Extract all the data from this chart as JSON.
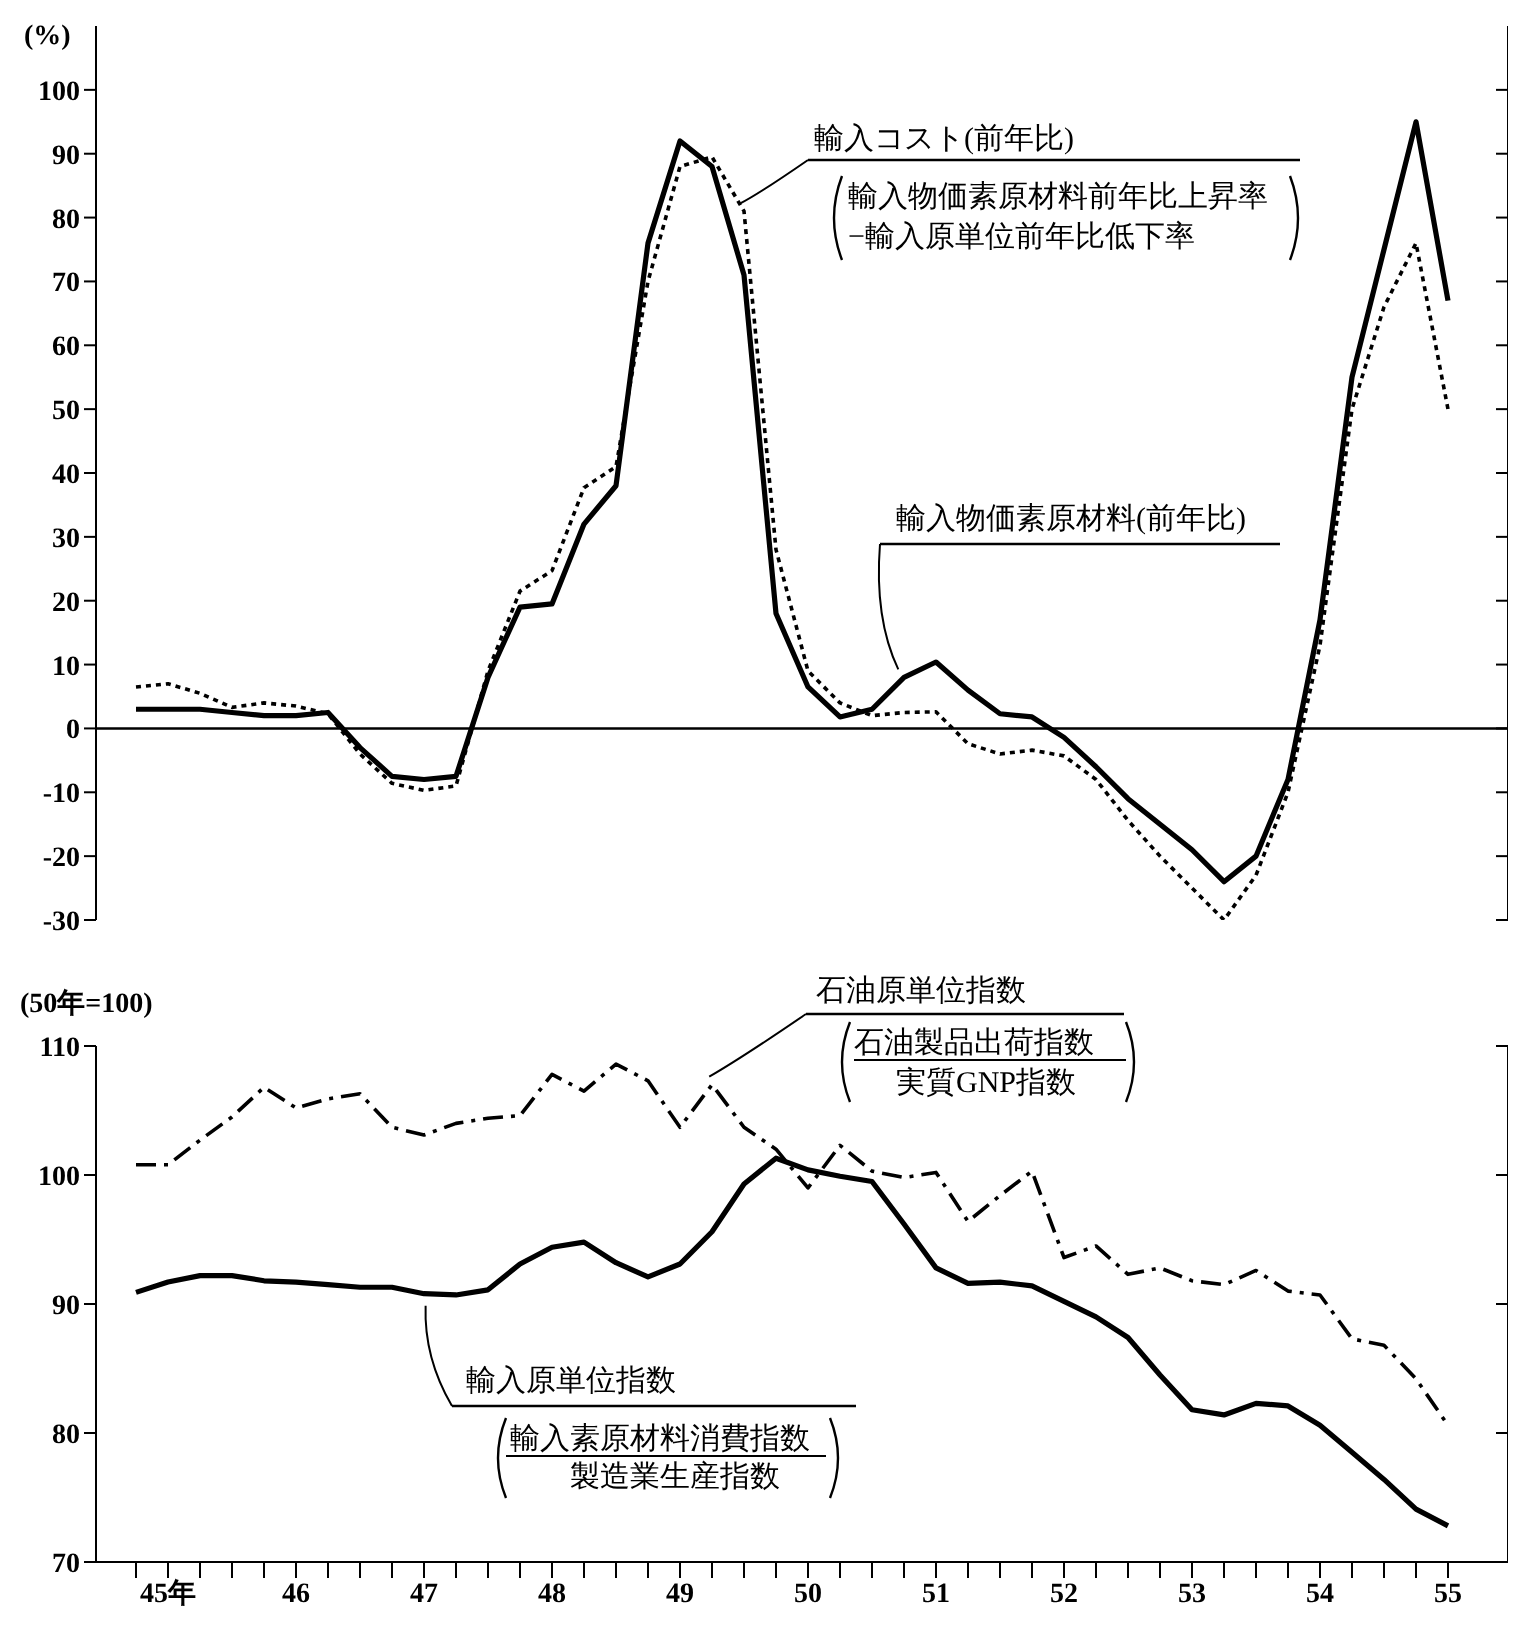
{
  "chart_data": [
    {
      "type": "line",
      "ylabel": "(%)",
      "categories": [
        null,
        null,
        null,
        null,
        null,
        null,
        null,
        null,
        null,
        null,
        null,
        null,
        null,
        null,
        null,
        null,
        null,
        null,
        null,
        null,
        null,
        null,
        null,
        null,
        null,
        null,
        null,
        null,
        null,
        null,
        null,
        null,
        null,
        null,
        null,
        null,
        null,
        null,
        null,
        null,
        null,
        null
      ],
      "series": [
        {
          "name": "輸入物価素原材料(前年比)",
          "color": "#000000",
          "line_style": "solid",
          "values": [
            3,
            3,
            3,
            2.5,
            2,
            2,
            2.5,
            -3,
            -7.5,
            -8,
            -7.5,
            8,
            19,
            19.5,
            32,
            38,
            76,
            92,
            88,
            71,
            18,
            6.5,
            1.8,
            3,
            8,
            10.4,
            6,
            2.3,
            1.8,
            -1.4,
            -6,
            -11,
            -15,
            -19,
            -24,
            -20,
            -8,
            17,
            55,
            75,
            95,
            67
          ]
        },
        {
          "name": "輸入コスト(前年比)",
          "color": "#000000",
          "line_style": "dotted",
          "values": [
            6.5,
            7,
            5.5,
            3.3,
            4,
            3.5,
            2.3,
            -4,
            -8.6,
            -9.7,
            -9,
            9,
            21.5,
            24.7,
            37.7,
            41,
            70,
            88,
            89.5,
            81,
            28,
            9,
            4,
            2,
            2.5,
            2.6,
            -2.4,
            -4,
            -3.4,
            -4.3,
            -8,
            -14.4,
            -20,
            -25,
            -30,
            -23,
            -10,
            13,
            50,
            66,
            76,
            50
          ]
        }
      ],
      "annotations": [
        "輸入物価素原材料前年比上昇率",
        "−輸入原単位前年比低下率"
      ],
      "ylim": [
        -30,
        110
      ],
      "yticks": [
        -30,
        -20,
        -10,
        0,
        10,
        20,
        30,
        40,
        50,
        60,
        70,
        80,
        90,
        100
      ],
      "ref_lines": [
        {
          "axis": "y",
          "value": 0
        }
      ],
      "tick_labels": "y"
    },
    {
      "type": "line",
      "ylabel": "(50年=100)",
      "categories": [
        null,
        "45年",
        null,
        null,
        null,
        "46",
        null,
        null,
        null,
        "47",
        null,
        null,
        null,
        "48",
        null,
        null,
        null,
        "49",
        null,
        null,
        null,
        "50",
        null,
        null,
        null,
        "51",
        null,
        null,
        null,
        "52",
        null,
        null,
        null,
        "53",
        null,
        null,
        null,
        "54",
        null,
        null,
        null,
        "55"
      ],
      "series": [
        {
          "name": "輸入原単位指数",
          "color": "#000000",
          "line_style": "solid",
          "values": [
            90.9,
            91.7,
            92.2,
            92.2,
            91.8,
            91.7,
            91.5,
            91.3,
            91.3,
            90.8,
            90.7,
            91.1,
            93.1,
            94.4,
            94.8,
            93.2,
            92.1,
            93.1,
            95.6,
            99.3,
            101.3,
            100.4,
            99.9,
            99.5,
            96.2,
            92.8,
            91.6,
            91.7,
            91.4,
            90.2,
            89,
            87.4,
            84.5,
            81.8,
            81.4,
            82.3,
            82.1,
            80.6,
            78.5,
            76.4,
            74.1,
            72.8
          ]
        },
        {
          "name": "石油原単位指数",
          "color": "#000000",
          "line_style": "dashdot",
          "values": [
            100.8,
            100.8,
            102.7,
            104.5,
            106.8,
            105.2,
            105.9,
            106.3,
            103.7,
            103.1,
            104,
            104.4,
            104.6,
            107.8,
            106.5,
            108.6,
            107.3,
            103.7,
            107,
            103.7,
            102,
            99,
            102.3,
            100.3,
            99.8,
            100.2,
            96.4,
            98.4,
            100.3,
            93.6,
            94.5,
            92.3,
            92.8,
            91.8,
            91.5,
            92.6,
            91,
            90.7,
            87.3,
            86.8,
            84.2,
            80.6
          ]
        }
      ],
      "annotations": [
        "石油製品出荷指数",
        "実質GNP指数",
        "輸入素原材料消費指数",
        "製造業生産指数"
      ],
      "ylim": [
        70,
        110
      ],
      "yticks": [
        70,
        80,
        90,
        100,
        110
      ]
    }
  ]
}
